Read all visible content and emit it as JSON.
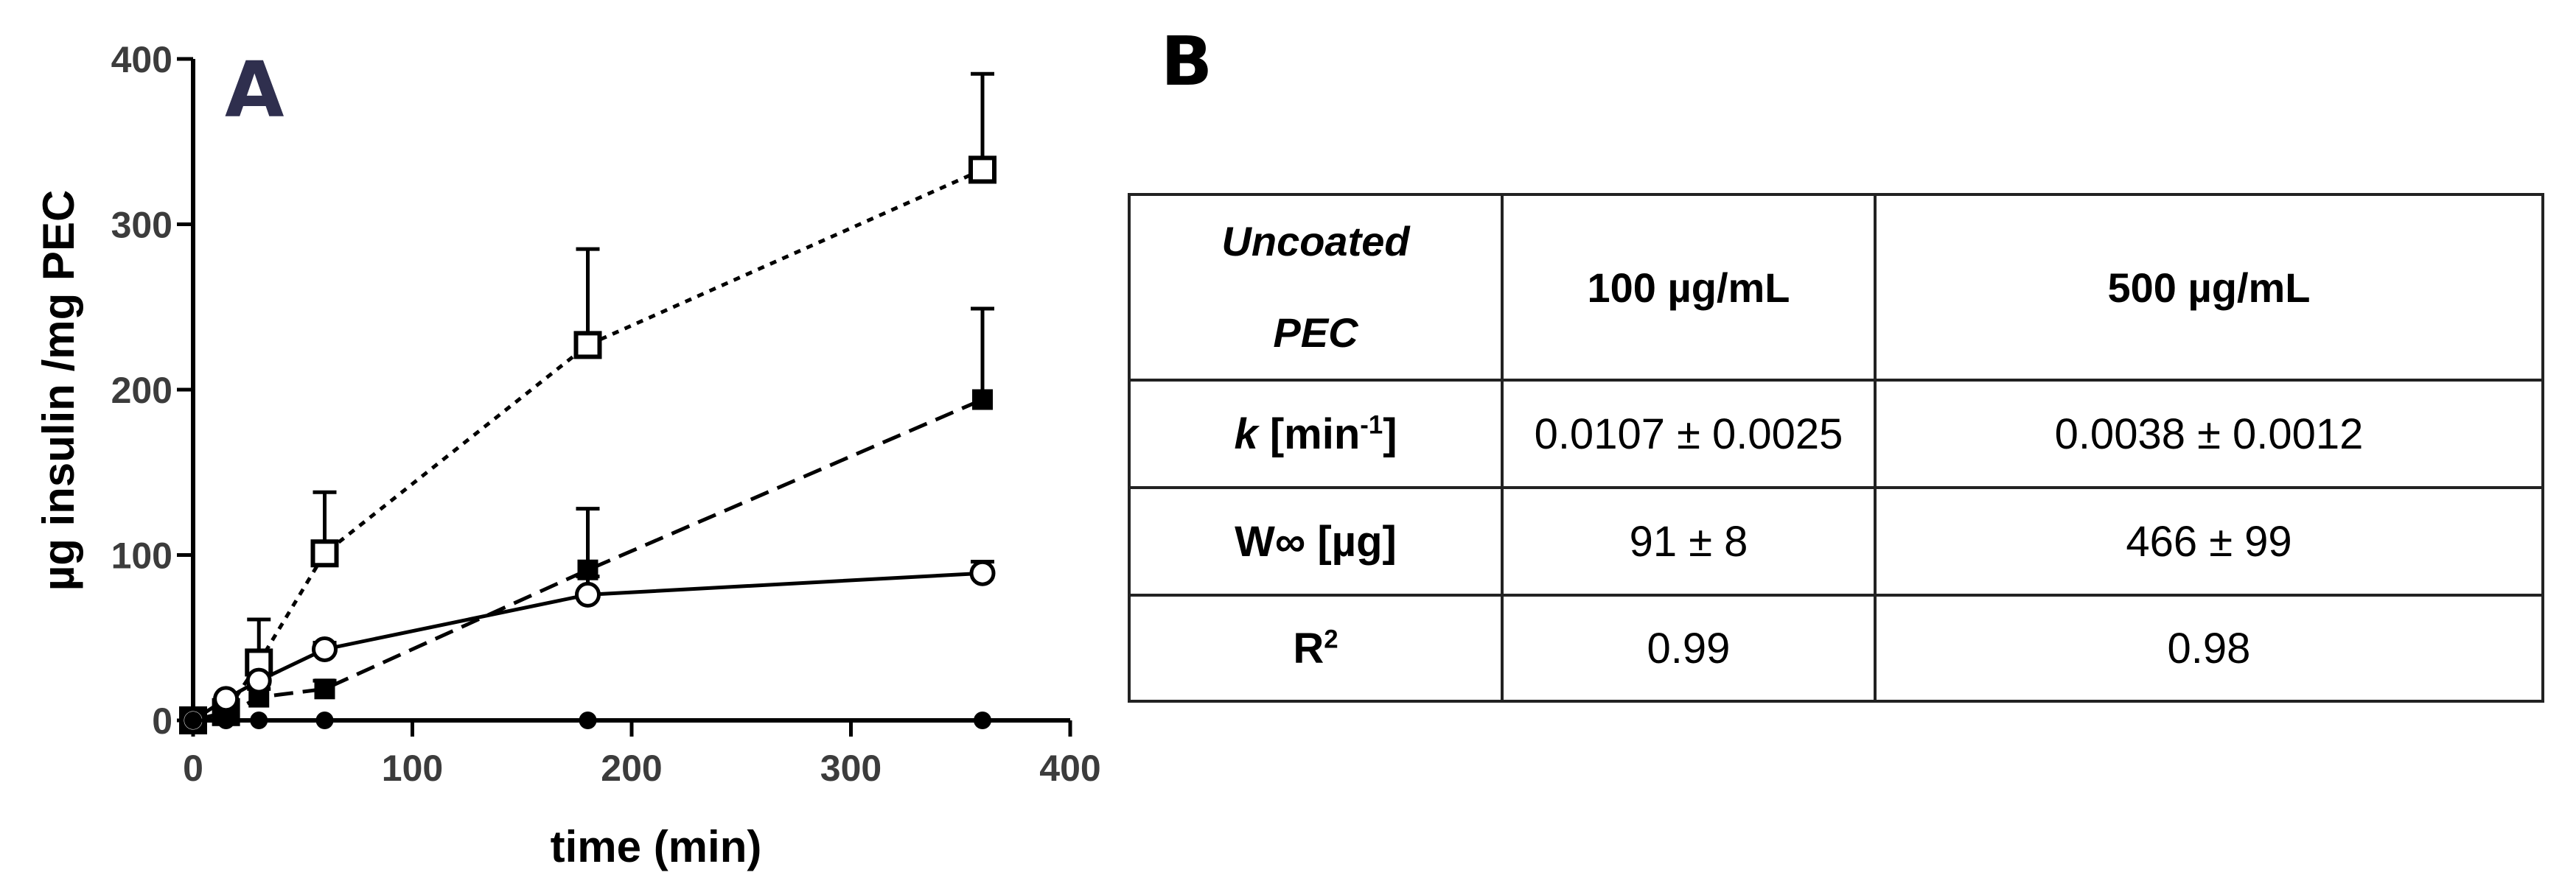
{
  "chart_data": {
    "type": "line",
    "panel_label": "A",
    "xlabel": "time (min)",
    "ylabel": "µg insulin /mg PEC",
    "xlim": [
      0,
      400
    ],
    "ylim": [
      0,
      400
    ],
    "xticks": [
      "0",
      "100",
      "200",
      "300",
      "400"
    ],
    "yticks": [
      "0",
      "100",
      "200",
      "300",
      "400"
    ],
    "grid": false,
    "series": [
      {
        "marker": "open-square",
        "line": "dotted",
        "x": [
          0,
          15,
          30,
          60,
          180,
          360
        ],
        "y": [
          0,
          5,
          35,
          101,
          227,
          333
        ],
        "err": [
          0,
          3,
          26,
          37,
          58,
          58
        ]
      },
      {
        "marker": "filled-square",
        "line": "dashed",
        "x": [
          0,
          15,
          30,
          60,
          180,
          360
        ],
        "y": [
          0,
          3,
          14,
          19,
          91,
          194
        ],
        "err": [
          0,
          2,
          5,
          5,
          37,
          55
        ]
      },
      {
        "marker": "open-circle",
        "line": "solid",
        "x": [
          0,
          15,
          30,
          60,
          180,
          360
        ],
        "y": [
          0,
          13,
          24,
          43,
          76,
          89
        ],
        "err": [
          0,
          2,
          4,
          4,
          11,
          7
        ]
      },
      {
        "marker": "filled-circle",
        "line": "solid",
        "x": [
          0,
          15,
          30,
          60,
          180,
          360
        ],
        "y": [
          0,
          0,
          0,
          0,
          0,
          0
        ],
        "err": [
          0,
          0,
          0,
          0,
          0,
          0
        ]
      }
    ]
  },
  "table": {
    "panel_label": "B",
    "corner": [
      "Uncoated",
      "PEC"
    ],
    "columns": [
      "100 µg/mL",
      "500 µg/mL"
    ],
    "rows": [
      {
        "label_main": "k",
        "label_rest": " [min",
        "label_sup": "-1",
        "label_end": "]",
        "values": [
          "0.0107 ± 0.0025",
          "0.0038 ± 0.0012"
        ]
      },
      {
        "label_main": "W∞ ",
        "label_rest": " [µg]",
        "label_sup": "",
        "label_end": "",
        "values": [
          "91 ± 8",
          "466 ± 99"
        ]
      },
      {
        "label_main": "R",
        "label_rest": "",
        "label_sup": "2",
        "label_end": "",
        "values": [
          "0.99",
          "0.98"
        ]
      }
    ]
  },
  "colors": {
    "panel_a_label": "#2f2f4e",
    "axis": "#000000"
  }
}
